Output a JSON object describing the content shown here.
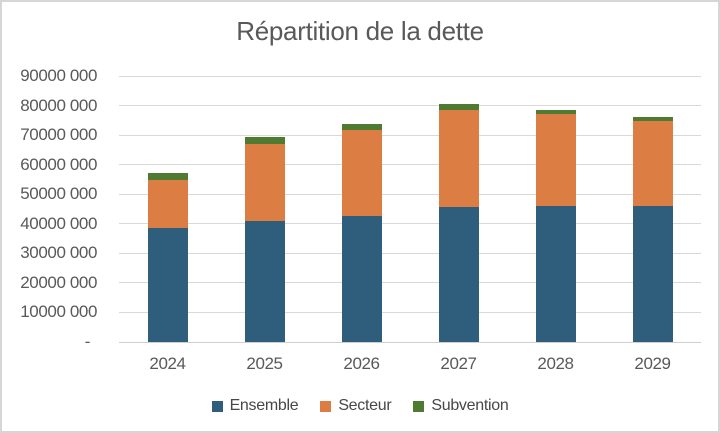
{
  "chart_data": {
    "type": "bar",
    "stacked": true,
    "title": "Répartition de la dette",
    "categories": [
      "2024",
      "2025",
      "2026",
      "2027",
      "2028",
      "2029"
    ],
    "series": [
      {
        "name": "Ensemble",
        "color": "#2e5e7c",
        "values": [
          38500000,
          41100000,
          42500000,
          45700000,
          46000000,
          46000000
        ]
      },
      {
        "name": "Secteur",
        "color": "#dc7d44",
        "values": [
          16200000,
          25800000,
          29200000,
          32800000,
          31200000,
          28800000
        ]
      },
      {
        "name": "Subvention",
        "color": "#4e7b31",
        "values": [
          2500000,
          2400000,
          2200000,
          2200000,
          1400000,
          1500000
        ]
      }
    ],
    "totals": [
      57200000,
      69300000,
      73900000,
      80700000,
      78600000,
      76300000
    ],
    "xlabel": "",
    "ylabel": "",
    "ylim": [
      0,
      90000000
    ],
    "y_tick_step": 10000000,
    "y_tick_labels": [
      "-",
      "10000 000",
      "20000 000",
      "30000 000",
      "40000 000",
      "50000 000",
      "60000 000",
      "70000 000",
      "80000 000",
      "90000 000"
    ],
    "grid": true,
    "legend_position": "bottom",
    "colors": {
      "title_text": "#595959",
      "axis_text": "#595959",
      "legend_text": "#474747",
      "gridline": "#d9d9d9",
      "axis_line": "#d0cece",
      "frame_border": "#d8d6d4",
      "background": "#ffffff"
    }
  }
}
